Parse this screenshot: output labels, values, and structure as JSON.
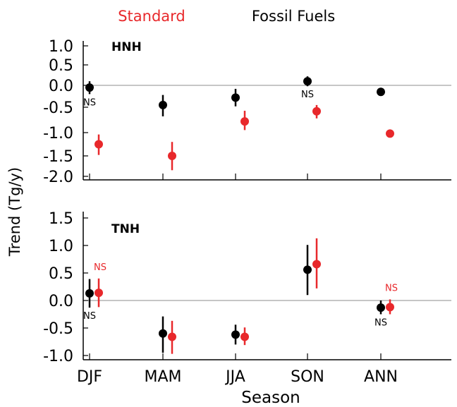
{
  "colors": {
    "standard": "#e8282b",
    "fossil": "#000000",
    "zero_line": "#8c8c8c",
    "axis": "#000000"
  },
  "legend": {
    "standard": "Standard",
    "fossil": "Fossil Fuels"
  },
  "chart_data": {
    "type": "scatter",
    "subtype": "point-with-error-bars",
    "xlabel": "Season",
    "ylabel": "Trend (Tg/y)",
    "categories": [
      "DJF",
      "MAM",
      "JJA",
      "SON",
      "ANN"
    ],
    "legend_position": "top",
    "panels": [
      {
        "title": "HNH",
        "yticks": [
          "1.0",
          "0.5",
          "0.0",
          "-0.5",
          "-1.0",
          "-1.5",
          "-2.0"
        ],
        "ylim": [
          -2.0,
          1.0
        ],
        "scale": "nonlinear (equal spacing for tick labels)",
        "zero_line": true,
        "series": [
          {
            "name": "Fossil Fuels",
            "values": [
              -0.05,
              -0.45,
              -0.28,
              0.1,
              -0.15
            ],
            "err_low": [
              -0.2,
              -0.68,
              -0.48,
              -0.02,
              -0.17
            ],
            "err_high": [
              0.1,
              -0.22,
              -0.08,
              0.22,
              -0.13
            ],
            "annotations": [
              "NS",
              "",
              "",
              "NS",
              ""
            ]
          },
          {
            "name": "Standard",
            "values": [
              -1.25,
              -1.5,
              -0.78,
              -0.58,
              -1.02
            ],
            "err_low": [
              -1.48,
              -1.85,
              -0.95,
              -0.72,
              -1.07
            ],
            "err_high": [
              -1.04,
              -1.2,
              -0.57,
              -0.45,
              -0.95
            ],
            "annotations": [
              "",
              "",
              "",
              "",
              ""
            ]
          }
        ]
      },
      {
        "title": "TNH",
        "yticks": [
          "1.5",
          "1.0",
          "0.5",
          "0.0",
          "-0.5",
          "-1.0"
        ],
        "ylim": [
          -1.0,
          1.5
        ],
        "scale": "linear",
        "zero_line": true,
        "series": [
          {
            "name": "Fossil Fuels",
            "values": [
              0.13,
              -0.6,
              -0.62,
              0.56,
              -0.13
            ],
            "err_low": [
              -0.13,
              -0.95,
              -0.8,
              0.1,
              -0.25
            ],
            "err_high": [
              0.39,
              -0.29,
              -0.44,
              1.01,
              0.0
            ],
            "annotations": [
              "NS",
              "",
              "",
              "",
              "NS"
            ]
          },
          {
            "name": "Standard",
            "values": [
              0.14,
              -0.66,
              -0.66,
              0.66,
              -0.12
            ],
            "err_low": [
              -0.12,
              -0.97,
              -0.81,
              0.22,
              -0.25
            ],
            "err_high": [
              0.4,
              -0.37,
              -0.49,
              1.13,
              0.02
            ],
            "annotations": [
              "NS",
              "",
              "",
              "",
              "NS"
            ]
          }
        ]
      }
    ]
  }
}
